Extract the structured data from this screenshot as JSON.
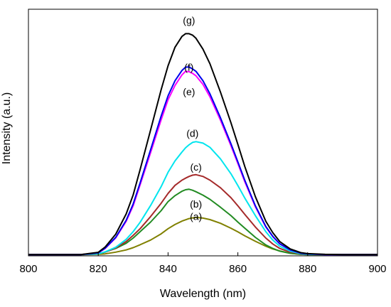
{
  "chart_data": {
    "type": "line",
    "title": "",
    "xlabel": "Wavelength (nm)",
    "ylabel": "Intensity (a.u.)",
    "xlim": [
      800,
      900
    ],
    "ylim": [
      0,
      1.0
    ],
    "x_ticks": [
      "800",
      "820",
      "840",
      "860",
      "880",
      "900"
    ],
    "y_ticks_shown": false,
    "grid": false,
    "legend": "none",
    "x": [
      800,
      805,
      810,
      815,
      820,
      822,
      825,
      828,
      830,
      832,
      835,
      838,
      840,
      842,
      844,
      845,
      846,
      847,
      848,
      850,
      852,
      855,
      858,
      860,
      862,
      865,
      868,
      870,
      872,
      875,
      878,
      880,
      885,
      890,
      895,
      900
    ],
    "series": [
      {
        "name": "(a)",
        "color": "#808000",
        "values": [
          0.005,
          0.005,
          0.005,
          0.005,
          0.006,
          0.008,
          0.015,
          0.024,
          0.033,
          0.045,
          0.064,
          0.089,
          0.11,
          0.127,
          0.141,
          0.146,
          0.151,
          0.154,
          0.156,
          0.153,
          0.147,
          0.132,
          0.112,
          0.097,
          0.081,
          0.059,
          0.039,
          0.028,
          0.02,
          0.011,
          0.006,
          0.005,
          0.005,
          0.005,
          0.005,
          0.005
        ]
      },
      {
        "name": "(b)",
        "color": "#228B22",
        "values": [
          0.005,
          0.005,
          0.005,
          0.005,
          0.008,
          0.016,
          0.03,
          0.051,
          0.072,
          0.098,
          0.137,
          0.183,
          0.22,
          0.244,
          0.262,
          0.268,
          0.27,
          0.266,
          0.26,
          0.246,
          0.229,
          0.197,
          0.163,
          0.137,
          0.112,
          0.075,
          0.044,
          0.03,
          0.019,
          0.01,
          0.006,
          0.005,
          0.005,
          0.005,
          0.005,
          0.005
        ]
      },
      {
        "name": "(c)",
        "color": "#A52A2A",
        "values": [
          0.005,
          0.005,
          0.005,
          0.005,
          0.008,
          0.015,
          0.032,
          0.058,
          0.083,
          0.11,
          0.159,
          0.213,
          0.253,
          0.286,
          0.307,
          0.315,
          0.322,
          0.327,
          0.329,
          0.322,
          0.307,
          0.276,
          0.236,
          0.203,
          0.168,
          0.117,
          0.072,
          0.048,
          0.03,
          0.015,
          0.008,
          0.006,
          0.005,
          0.005,
          0.005,
          0.005
        ]
      },
      {
        "name": "(d)",
        "color": "#00E5EE",
        "values": [
          0.005,
          0.005,
          0.005,
          0.005,
          0.008,
          0.016,
          0.035,
          0.067,
          0.098,
          0.136,
          0.204,
          0.28,
          0.339,
          0.385,
          0.421,
          0.438,
          0.45,
          0.46,
          0.463,
          0.457,
          0.44,
          0.393,
          0.333,
          0.285,
          0.234,
          0.163,
          0.098,
          0.064,
          0.039,
          0.019,
          0.009,
          0.006,
          0.005,
          0.005,
          0.005,
          0.005
        ]
      },
      {
        "name": "(e)",
        "color": "#FF00FF",
        "values": [
          0.005,
          0.005,
          0.005,
          0.005,
          0.012,
          0.03,
          0.073,
          0.14,
          0.203,
          0.288,
          0.418,
          0.551,
          0.633,
          0.691,
          0.734,
          0.748,
          0.747,
          0.74,
          0.73,
          0.695,
          0.645,
          0.55,
          0.447,
          0.374,
          0.3,
          0.199,
          0.117,
          0.078,
          0.048,
          0.024,
          0.011,
          0.008,
          0.005,
          0.005,
          0.005,
          0.005
        ]
      },
      {
        "name": "(f)",
        "color": "#0000EE",
        "values": [
          0.005,
          0.005,
          0.005,
          0.005,
          0.012,
          0.031,
          0.075,
          0.144,
          0.21,
          0.296,
          0.43,
          0.566,
          0.649,
          0.71,
          0.752,
          0.765,
          0.766,
          0.758,
          0.748,
          0.71,
          0.657,
          0.56,
          0.455,
          0.381,
          0.306,
          0.203,
          0.119,
          0.079,
          0.049,
          0.024,
          0.011,
          0.008,
          0.005,
          0.005,
          0.005,
          0.005
        ]
      },
      {
        "name": "(g)",
        "color": "#000000",
        "values": [
          0.005,
          0.005,
          0.005,
          0.005,
          0.014,
          0.036,
          0.088,
          0.17,
          0.247,
          0.35,
          0.51,
          0.673,
          0.771,
          0.846,
          0.89,
          0.901,
          0.901,
          0.895,
          0.882,
          0.838,
          0.779,
          0.664,
          0.54,
          0.452,
          0.362,
          0.24,
          0.14,
          0.094,
          0.058,
          0.028,
          0.013,
          0.009,
          0.006,
          0.005,
          0.005,
          0.005
        ]
      }
    ],
    "annotations": [
      {
        "text": "(g)",
        "x": 846,
        "y": 0.955
      },
      {
        "text": "(f)",
        "x": 846,
        "y": 0.765
      },
      {
        "text": "(e)",
        "x": 846,
        "y": 0.665
      },
      {
        "text": "(d)",
        "x": 847,
        "y": 0.497
      },
      {
        "text": "(c)",
        "x": 848,
        "y": 0.36
      },
      {
        "text": "(b)",
        "x": 848,
        "y": 0.211
      },
      {
        "text": "(a)",
        "x": 848,
        "y": 0.16
      }
    ]
  }
}
